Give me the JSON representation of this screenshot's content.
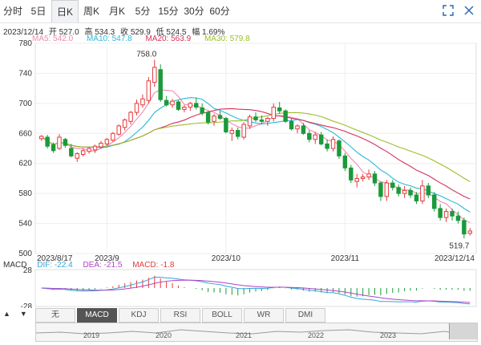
{
  "tabs": [
    {
      "label": "分时"
    },
    {
      "label": "5日"
    },
    {
      "label": "日K"
    },
    {
      "label": "周K"
    },
    {
      "label": "月K"
    },
    {
      "label": "5分"
    },
    {
      "label": "15分"
    },
    {
      "label": "30分"
    },
    {
      "label": "60分"
    }
  ],
  "active_tab": "日K",
  "top_icons": [
    "fullscreen-icon",
    "close-icon"
  ],
  "info": {
    "date": "2023/12/14",
    "open_label": "开",
    "open": "527.0",
    "high_label": "高",
    "high": "534.3",
    "close_label": "收",
    "close": "529.9",
    "low_label": "低",
    "low": "524.5",
    "amp_label": "幅",
    "amp": "1.69%"
  },
  "ma": {
    "ma5": "MA5: 542.0",
    "ma10": "MA10: 547.8",
    "ma20": "MA20: 563.9",
    "ma30": "MA30: 579.8"
  },
  "colors": {
    "up": "#e23b3b",
    "down": "#1a9a3a",
    "ma5": "#f08ab0",
    "ma10": "#2cb8d8",
    "ma20": "#d4325a",
    "ma30": "#9bbf2a",
    "dif": "#33a6d6",
    "dea": "#b042c8"
  },
  "chart_data": {
    "type": "candlestick",
    "ylim": [
      500,
      780
    ],
    "yticks": [
      500,
      540,
      580,
      620,
      660,
      700,
      740,
      780
    ],
    "xlabels": [
      "2023/8/17",
      "2023/9",
      "2023/10",
      "2023/11",
      "2023/12/14"
    ],
    "annotations": [
      {
        "text": "758.0"
      },
      {
        "text": "519.7"
      }
    ],
    "candles": [
      [
        653,
        658,
        650,
        656
      ],
      [
        655,
        658,
        640,
        643
      ],
      [
        645,
        648,
        634,
        637
      ],
      [
        640,
        659,
        638,
        655
      ],
      [
        652,
        654,
        641,
        644
      ],
      [
        640,
        646,
        628,
        630
      ],
      [
        627,
        635,
        622,
        633
      ],
      [
        632,
        640,
        629,
        637
      ],
      [
        636,
        642,
        633,
        640
      ],
      [
        638,
        645,
        634,
        643
      ],
      [
        642,
        650,
        640,
        647
      ],
      [
        646,
        654,
        644,
        652
      ],
      [
        651,
        662,
        649,
        660
      ],
      [
        659,
        672,
        657,
        670
      ],
      [
        668,
        680,
        664,
        678
      ],
      [
        676,
        690,
        672,
        688
      ],
      [
        688,
        705,
        684,
        700
      ],
      [
        698,
        712,
        694,
        706
      ],
      [
        704,
        735,
        700,
        730
      ],
      [
        728,
        758,
        722,
        748
      ],
      [
        745,
        752,
        702,
        705
      ],
      [
        704,
        710,
        696,
        698
      ],
      [
        698,
        706,
        694,
        703
      ],
      [
        702,
        704,
        690,
        692
      ],
      [
        692,
        698,
        688,
        695
      ],
      [
        695,
        702,
        690,
        700
      ],
      [
        700,
        708,
        692,
        695
      ],
      [
        694,
        700,
        684,
        687
      ],
      [
        688,
        690,
        672,
        675
      ],
      [
        676,
        686,
        670,
        683
      ],
      [
        684,
        690,
        678,
        680
      ],
      [
        680,
        682,
        660,
        662
      ],
      [
        660,
        668,
        650,
        664
      ],
      [
        664,
        668,
        652,
        656
      ],
      [
        655,
        675,
        652,
        672
      ],
      [
        670,
        685,
        666,
        682
      ],
      [
        682,
        688,
        675,
        678
      ],
      [
        678,
        684,
        672,
        676
      ],
      [
        676,
        682,
        670,
        680
      ],
      [
        680,
        700,
        676,
        695
      ],
      [
        694,
        702,
        686,
        690
      ],
      [
        690,
        692,
        674,
        676
      ],
      [
        676,
        680,
        664,
        666
      ],
      [
        666,
        672,
        660,
        670
      ],
      [
        670,
        674,
        658,
        660
      ],
      [
        660,
        664,
        648,
        652
      ],
      [
        652,
        662,
        646,
        658
      ],
      [
        658,
        662,
        644,
        646
      ],
      [
        646,
        652,
        636,
        640
      ],
      [
        640,
        656,
        636,
        652
      ],
      [
        650,
        652,
        626,
        630
      ],
      [
        630,
        634,
        610,
        614
      ],
      [
        614,
        618,
        594,
        598
      ],
      [
        596,
        606,
        588,
        600
      ],
      [
        600,
        606,
        596,
        602
      ],
      [
        602,
        612,
        598,
        606
      ],
      [
        606,
        610,
        590,
        594
      ],
      [
        594,
        596,
        570,
        576
      ],
      [
        576,
        598,
        570,
        594
      ],
      [
        594,
        598,
        584,
        588
      ],
      [
        588,
        592,
        576,
        580
      ],
      [
        580,
        590,
        574,
        584
      ],
      [
        584,
        588,
        574,
        578
      ],
      [
        578,
        582,
        566,
        570
      ],
      [
        570,
        598,
        566,
        590
      ],
      [
        590,
        594,
        574,
        578
      ],
      [
        578,
        582,
        556,
        560
      ],
      [
        560,
        566,
        544,
        548
      ],
      [
        548,
        560,
        542,
        556
      ],
      [
        556,
        560,
        544,
        550
      ],
      [
        550,
        556,
        540,
        544
      ],
      [
        544,
        548,
        520,
        526
      ],
      [
        527,
        534,
        524,
        530
      ]
    ],
    "macd": {
      "ylim": [
        -28,
        28
      ],
      "yticks": [
        "28",
        "-28"
      ]
    }
  },
  "macd_info": {
    "label": "MACD",
    "dif": "DIF: -22.4",
    "dea": "DEA: -21.5",
    "macd": "MACD: -1.8"
  },
  "indicator_tabs": [
    {
      "label": "无"
    },
    {
      "label": "MACD"
    },
    {
      "label": "KDJ"
    },
    {
      "label": "RSI"
    },
    {
      "label": "BOLL"
    },
    {
      "label": "WR"
    },
    {
      "label": "DMI"
    }
  ],
  "active_indicator": "MACD",
  "years": [
    "2019",
    "2020",
    "2021",
    "2022",
    "2023"
  ],
  "nav_arrows": [
    "▲",
    "▼"
  ]
}
